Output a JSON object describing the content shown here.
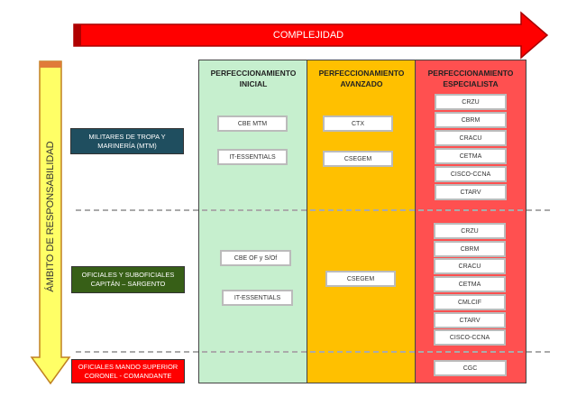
{
  "complexity_arrow": {
    "label": "COMPLEJIDAD",
    "color": "#ff0000"
  },
  "responsibility_arrow": {
    "label": "ÁMBITO DE RESPONSABILIDAD",
    "color": "#ffff66"
  },
  "columns": [
    {
      "title_line1": "PERFECCIONAMIENTO",
      "title_line2": "INICIAL",
      "color": "#c6efce"
    },
    {
      "title_line1": "PERFECCIONAMIENTO",
      "title_line2": "AVANZADO",
      "color": "#ffc000"
    },
    {
      "title_line1": "PERFECCIONAMIENTO",
      "title_line2": "ESPECIALISTA",
      "color": "#ff5050"
    }
  ],
  "rows": [
    {
      "line1": "MILITARES DE TROPA Y",
      "line2": "MARINERÍA (MTM)",
      "color": "#1f4e5f"
    },
    {
      "line1": "OFICIALES Y SUBOFICIALES",
      "line2": "CAPITÁN – SARGENTO",
      "color": "#375f17"
    },
    {
      "line1": "OFICIALES MANDO SUPERIOR",
      "line2": "CORONEL - COMANDANTE",
      "color": "#ff0000"
    }
  ],
  "courses": {
    "mtm_inicial": [
      "CBE MTM",
      "IT-ESSENTIALS"
    ],
    "mtm_avanzado": [
      "CTX",
      "CSEGEM"
    ],
    "mtm_especialista": [
      "CRZU",
      "CBRM",
      "CRACU",
      "CETMA",
      "CISCO-CCNA",
      "CTARV"
    ],
    "of_inicial": [
      "CBE OF y S/Of",
      "IT-ESSENTIALS"
    ],
    "of_avanzado": [
      "CSEGEM"
    ],
    "of_especialista": [
      "CRZU",
      "CBRM",
      "CRACU",
      "CETMA",
      "CMLCIF",
      "CTARV",
      "CISCO-CCNA"
    ],
    "sup_especialista": [
      "CGC"
    ]
  }
}
